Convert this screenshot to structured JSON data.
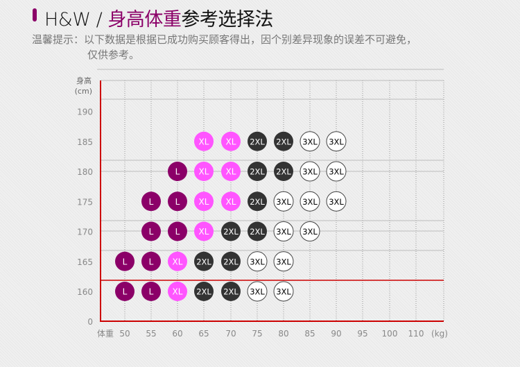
{
  "header": {
    "brand": "H&W / ",
    "title_highlight": "身高体重",
    "title_rest": "参考选择法"
  },
  "notice": {
    "label": "温馨提示：",
    "line1": "以下数据是根据已成功购买顾客得出，因个别差异现象的误差不可避免，",
    "line2": "仅供参考。"
  },
  "colors": {
    "L": "#8b0068",
    "XL": "#ff55ff",
    "2XL": "#333333",
    "3XL": "#ffffff"
  },
  "chart_data": {
    "type": "scatter",
    "ylabel": "身高",
    "yunit": "(cm)",
    "xlabel": "体重",
    "xunit": "(kg)",
    "y_ticks": [
      "0",
      "160",
      "165",
      "170",
      "175",
      "180",
      "185",
      "190"
    ],
    "x_ticks": [
      "50",
      "55",
      "60",
      "65",
      "70",
      "75",
      "80",
      "85",
      "90",
      "95",
      "100",
      "110"
    ],
    "grid": true,
    "points": [
      {
        "h": 185,
        "w": 65,
        "size": "XL"
      },
      {
        "h": 185,
        "w": 70,
        "size": "XL"
      },
      {
        "h": 185,
        "w": 75,
        "size": "2XL"
      },
      {
        "h": 185,
        "w": 80,
        "size": "2XL"
      },
      {
        "h": 185,
        "w": 85,
        "size": "3XL"
      },
      {
        "h": 185,
        "w": 90,
        "size": "3XL"
      },
      {
        "h": 180,
        "w": 60,
        "size": "L"
      },
      {
        "h": 180,
        "w": 65,
        "size": "XL"
      },
      {
        "h": 180,
        "w": 70,
        "size": "XL"
      },
      {
        "h": 180,
        "w": 75,
        "size": "2XL"
      },
      {
        "h": 180,
        "w": 80,
        "size": "2XL"
      },
      {
        "h": 180,
        "w": 85,
        "size": "3XL"
      },
      {
        "h": 180,
        "w": 90,
        "size": "3XL"
      },
      {
        "h": 175,
        "w": 55,
        "size": "L"
      },
      {
        "h": 175,
        "w": 60,
        "size": "L"
      },
      {
        "h": 175,
        "w": 65,
        "size": "XL"
      },
      {
        "h": 175,
        "w": 70,
        "size": "XL"
      },
      {
        "h": 175,
        "w": 75,
        "size": "2XL"
      },
      {
        "h": 175,
        "w": 80,
        "size": "3XL"
      },
      {
        "h": 175,
        "w": 85,
        "size": "3XL"
      },
      {
        "h": 175,
        "w": 90,
        "size": "3XL"
      },
      {
        "h": 170,
        "w": 55,
        "size": "L"
      },
      {
        "h": 170,
        "w": 60,
        "size": "L"
      },
      {
        "h": 170,
        "w": 65,
        "size": "XL"
      },
      {
        "h": 170,
        "w": 70,
        "size": "2XL"
      },
      {
        "h": 170,
        "w": 75,
        "size": "2XL"
      },
      {
        "h": 170,
        "w": 80,
        "size": "3XL"
      },
      {
        "h": 170,
        "w": 85,
        "size": "3XL"
      },
      {
        "h": 165,
        "w": 50,
        "size": "L"
      },
      {
        "h": 165,
        "w": 55,
        "size": "L"
      },
      {
        "h": 165,
        "w": 60,
        "size": "XL"
      },
      {
        "h": 165,
        "w": 65,
        "size": "2XL"
      },
      {
        "h": 165,
        "w": 70,
        "size": "2XL"
      },
      {
        "h": 165,
        "w": 75,
        "size": "3XL"
      },
      {
        "h": 165,
        "w": 80,
        "size": "3XL"
      },
      {
        "h": 160,
        "w": 50,
        "size": "L"
      },
      {
        "h": 160,
        "w": 55,
        "size": "L"
      },
      {
        "h": 160,
        "w": 60,
        "size": "XL"
      },
      {
        "h": 160,
        "w": 65,
        "size": "2XL"
      },
      {
        "h": 160,
        "w": 70,
        "size": "2XL"
      },
      {
        "h": 160,
        "w": 75,
        "size": "3XL"
      },
      {
        "h": 160,
        "w": 80,
        "size": "3XL"
      }
    ]
  }
}
